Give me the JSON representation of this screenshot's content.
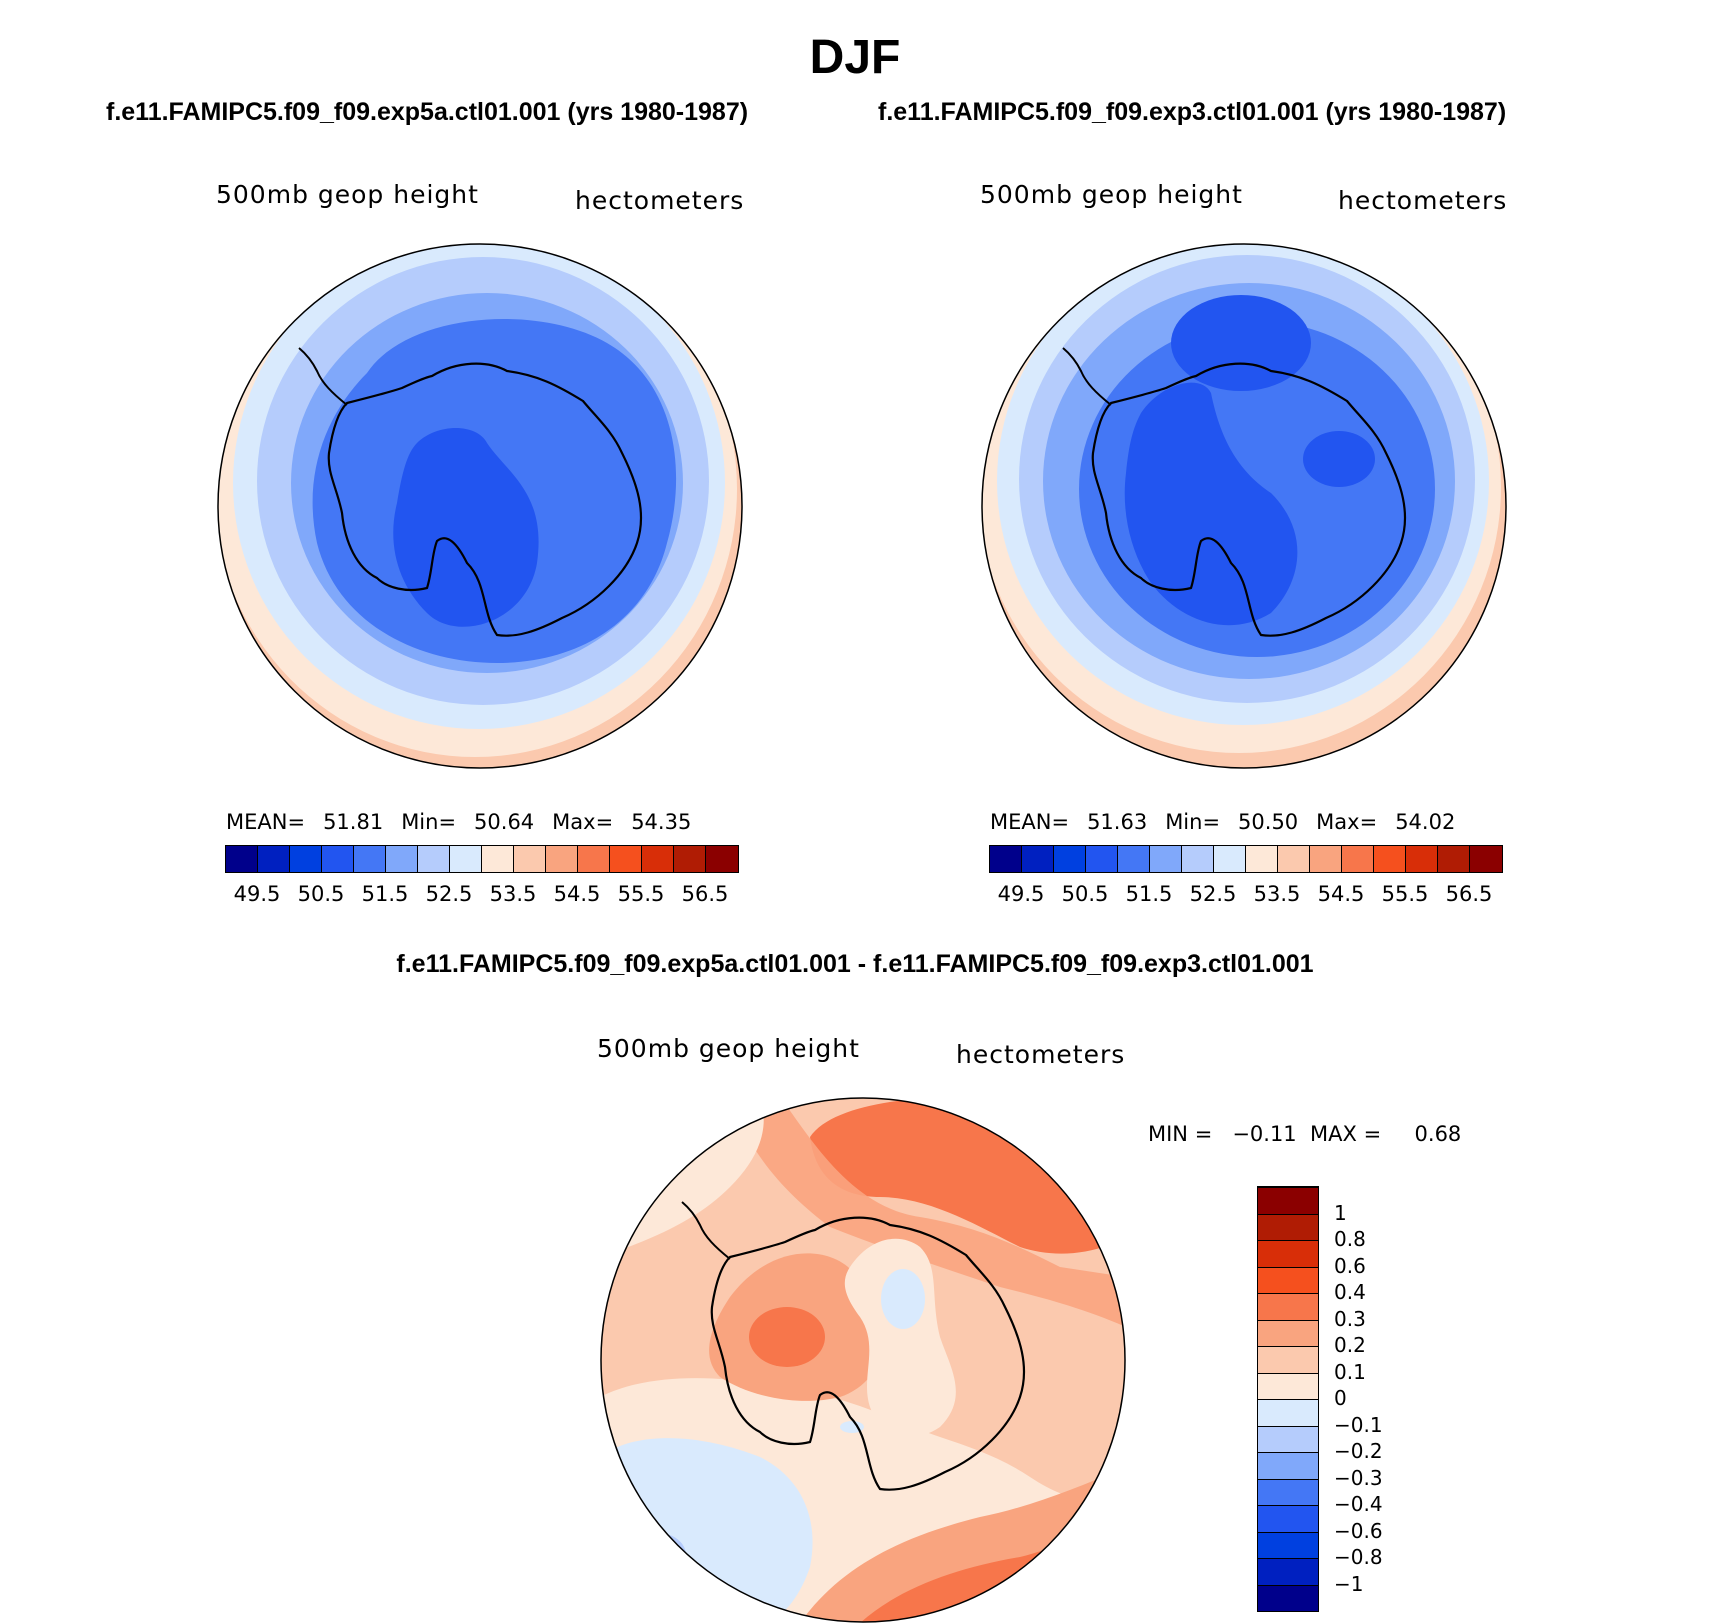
{
  "title": "DJF",
  "panels": [
    {
      "case_title": "f.e11.FAMIPC5.f09_f09.exp5a.ctl01.001 (yrs 1980-1987)",
      "field_label": "500mb  geop  height",
      "units_label": "hectometers",
      "stats": {
        "mean_label": "MEAN=",
        "mean": "51.81",
        "min_label": "Min=",
        "min": "50.64",
        "max_label": "Max=",
        "max": "54.35"
      }
    },
    {
      "case_title": "f.e11.FAMIPC5.f09_f09.exp3.ctl01.001 (yrs 1980-1987)",
      "field_label": "500mb  geop  height",
      "units_label": "hectometers",
      "stats": {
        "mean_label": "MEAN=",
        "mean": "51.63",
        "min_label": "Min=",
        "min": "50.50",
        "max_label": "Max=",
        "max": "54.02"
      }
    }
  ],
  "diff_panel": {
    "title": "f.e11.FAMIPC5.f09_f09.exp5a.ctl01.001 - f.e11.FAMIPC5.f09_f09.exp3.ctl01.001",
    "field_label": "500mb  geop  height",
    "units_label": "hectometers",
    "minmax": "MIN =   −0.11  MAX =     0.68"
  },
  "colorbar_abs": {
    "colors": [
      "#00008b",
      "#0020c0",
      "#0040e0",
      "#2255f0",
      "#4477f5",
      "#80a8fa",
      "#b5ccfc",
      "#d9eafd",
      "#fde8d8",
      "#fbc9ae",
      "#f9a47f",
      "#f7764b",
      "#f5501e",
      "#d82e08",
      "#b01c04",
      "#8b0000"
    ],
    "tick_labels": [
      "49.5",
      "50.5",
      "51.5",
      "52.5",
      "53.5",
      "54.5",
      "55.5",
      "56.5"
    ]
  },
  "colorbar_diff": {
    "colors": [
      "#00008b",
      "#0020c0",
      "#0040e0",
      "#2255f0",
      "#4477f5",
      "#80a8fa",
      "#b5ccfc",
      "#d9eafd",
      "#fde8d8",
      "#fbc9ae",
      "#f9a47f",
      "#f7764b",
      "#f5501e",
      "#d82e08",
      "#b01c04",
      "#8b0000"
    ],
    "tick_labels": [
      "−1",
      "−0.8",
      "−0.6",
      "−0.4",
      "−0.3",
      "−0.2",
      "−0.1",
      "0",
      "0.1",
      "0.2",
      "0.3",
      "0.4",
      "0.6",
      "0.8",
      "1"
    ]
  },
  "chart_data": [
    {
      "type": "heatmap",
      "projection": "south polar stereographic",
      "title": "f.e11.FAMIPC5.f09_f09.exp5a.ctl01.001 (yrs 1980-1987)",
      "variable": "500mb geop height",
      "units": "hectometers",
      "contour_levels": [
        49.5,
        50.0,
        50.5,
        51.0,
        51.5,
        52.0,
        52.5,
        53.0,
        53.5,
        54.0,
        54.5,
        55.0,
        55.5,
        56.0,
        56.5
      ],
      "mean": 51.81,
      "min": 50.64,
      "max": 54.35
    },
    {
      "type": "heatmap",
      "projection": "south polar stereographic",
      "title": "f.e11.FAMIPC5.f09_f09.exp3.ctl01.001 (yrs 1980-1987)",
      "variable": "500mb geop height",
      "units": "hectometers",
      "contour_levels": [
        49.5,
        50.0,
        50.5,
        51.0,
        51.5,
        52.0,
        52.5,
        53.0,
        53.5,
        54.0,
        54.5,
        55.0,
        55.5,
        56.0,
        56.5
      ],
      "mean": 51.63,
      "min": 50.5,
      "max": 54.02
    },
    {
      "type": "heatmap",
      "projection": "south polar stereographic",
      "title": "f.e11.FAMIPC5.f09_f09.exp5a.ctl01.001 - f.e11.FAMIPC5.f09_f09.exp3.ctl01.001",
      "variable": "500mb geop height",
      "units": "hectometers",
      "contour_levels": [
        -1,
        -0.8,
        -0.6,
        -0.4,
        -0.3,
        -0.2,
        -0.1,
        0,
        0.1,
        0.2,
        0.3,
        0.4,
        0.6,
        0.8,
        1
      ],
      "min": -0.11,
      "max": 0.68
    }
  ]
}
